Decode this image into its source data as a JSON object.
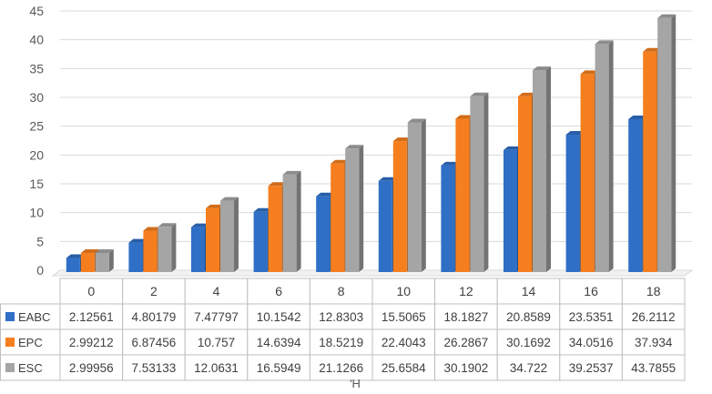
{
  "chart_data": {
    "type": "bar",
    "title": "",
    "xlabel": "ʹH",
    "ylabel": "",
    "ylim": [
      0,
      45
    ],
    "yticks": [
      "0",
      "5",
      "10",
      "15",
      "20",
      "25",
      "30",
      "35",
      "40",
      "45"
    ],
    "grid": true,
    "legend": "data-table-left",
    "categories": [
      "0",
      "2",
      "4",
      "6",
      "8",
      "10",
      "12",
      "14",
      "16",
      "18"
    ],
    "series": [
      {
        "name": "EABC",
        "color": "#2F6FC6",
        "values": [
          2.12561,
          4.80179,
          7.47797,
          10.1542,
          12.8303,
          15.5065,
          18.1827,
          20.8589,
          23.5351,
          26.2112
        ],
        "labels": [
          "2.12561",
          "4.80179",
          "7.47797",
          "10.1542",
          "12.8303",
          "15.5065",
          "18.1827",
          "20.8589",
          "23.5351",
          "26.2112"
        ]
      },
      {
        "name": "EPC",
        "color": "#F57F1F",
        "values": [
          2.99212,
          6.87456,
          10.757,
          14.6394,
          18.5219,
          22.4043,
          26.2867,
          30.1692,
          34.0516,
          37.934
        ],
        "labels": [
          "2.99212",
          "6.87456",
          "10.757",
          "14.6394",
          "18.5219",
          "22.4043",
          "26.2867",
          "30.1692",
          "34.0516",
          "37.934"
        ]
      },
      {
        "name": "ESC",
        "color": "#A5A5A5",
        "values": [
          2.99956,
          7.53133,
          12.0631,
          16.5949,
          21.1266,
          25.6584,
          30.1902,
          34.722,
          39.2537,
          43.7855
        ],
        "labels": [
          "2.99956",
          "7.53133",
          "12.0631",
          "16.5949",
          "21.1266",
          "25.6584",
          "30.1902",
          "34.722",
          "39.2537",
          "43.7855"
        ]
      }
    ]
  }
}
